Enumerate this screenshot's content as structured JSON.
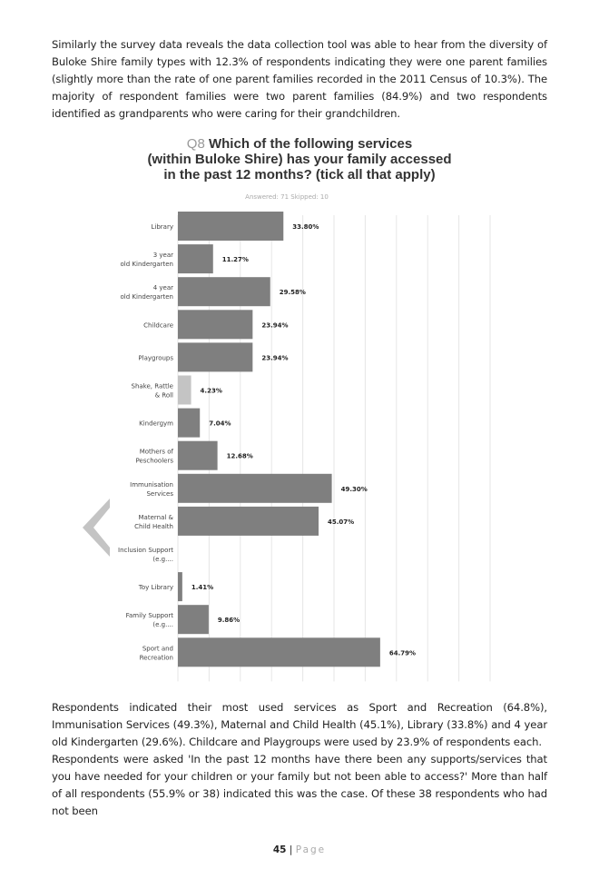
{
  "paragraphs": [
    "Similarly the survey data reveals the data collection tool was able to hear from the diversity of Buloke Shire family types with 12.3% of respondents indicating they were one parent families (slightly more than the rate of one parent families recorded in the 2011 Census of 10.3%). The majority of respondent families were two parent families (84.9%) and two respondents identified as grandparents who were caring for their grandchildren.",
    "Respondents indicated their most used services as Sport and Recreation (64.8%), Immunisation Services (49.3%), Maternal and Child Health (45.1%), Library (33.8%) and 4 year old Kindergarten (29.6%). Childcare and Playgroups were used by 23.9% of respondents each.",
    "Respondents were asked 'In the past 12 months have there been any supports/services that you have needed for your children or your family but not been able to access?' More than half of all respondents (55.9% or 38) indicated this was the case. Of these 38 respondents who had not been"
  ],
  "footer": {
    "page_number": "45",
    "separator": " | ",
    "page_label": "Page"
  },
  "chart_data": {
    "type": "bar",
    "orientation": "horizontal",
    "title_prefix": "Q8",
    "title": "Which of the following services (within Buloke Shire) has your family accessed in the past 12 months? (tick all that apply)",
    "subtitle": "Answered: 71    Skipped: 10",
    "categories": [
      "Library",
      "3 year old Kindergarten",
      "4 year old Kindergarten",
      "Childcare",
      "Playgroups",
      "Shake, Rattle & Roll",
      "Kindergym",
      "Mothers of Peschoolers",
      "Immunisation Services",
      "Maternal & Child Health",
      "Inclusion Support (e.g....",
      "Toy Library",
      "Family Support (e.g....",
      "Sport and Recreation"
    ],
    "values": [
      33.8,
      11.27,
      29.58,
      23.94,
      23.94,
      4.23,
      7.04,
      12.68,
      49.3,
      45.07,
      0,
      1.41,
      9.86,
      64.79
    ],
    "data_labels": [
      "33.80%",
      "11.27%",
      "29.58%",
      "23.94%",
      "23.94%",
      "4.23%",
      "7.04%",
      "12.68%",
      "49.30%",
      "45.07%",
      "",
      "1.41%",
      "9.86%",
      "64.79%"
    ],
    "highlighted_index": 5,
    "xlim": [
      0,
      100
    ],
    "xticks": [
      "0%",
      "10%",
      "20%",
      "30%",
      "40%",
      "50%",
      "60%",
      "70%",
      "80%",
      "90%",
      "100%"
    ],
    "grid": true,
    "colors": {
      "bar": "#7f7f7f",
      "highlight": "#c4c4c4",
      "grid": "#e6e6e6"
    }
  },
  "icons": {
    "back_arrow": "chevron-left-icon"
  }
}
